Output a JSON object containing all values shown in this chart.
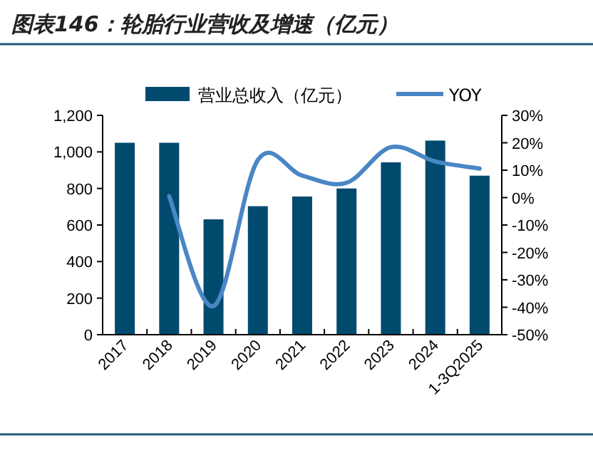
{
  "chart_data": {
    "type": "bar",
    "title": "图表146：轮胎行业营收及增速（亿元）",
    "categories": [
      "2017",
      "2018",
      "2019",
      "2020",
      "2021",
      "2022",
      "2023",
      "2024",
      "1-3Q2025"
    ],
    "series": [
      {
        "name": "营业总收入（亿元）",
        "color": "#004a6e",
        "values": [
          1050,
          1050,
          631,
          703,
          756,
          800,
          943,
          1062,
          870
        ]
      },
      {
        "name": "YOY",
        "type": "line",
        "axis": "y2",
        "color": "#4a86c5",
        "line_style": "solid",
        "marker": "none",
        "values": [
          null,
          0.5,
          -39.6,
          13.7,
          8,
          5.4,
          18.4,
          13.2,
          10.6
        ]
      }
    ],
    "ylim": [
      0,
      1200
    ],
    "yticks": [
      0,
      200,
      400,
      600,
      800,
      {
        "value": 1000,
        "label": "1,000"
      },
      {
        "value": 1200,
        "label": "1,200"
      }
    ],
    "y2lim": [
      -50,
      30
    ],
    "y2ticks": [
      {
        "value": -50,
        "label": "-50%"
      },
      {
        "value": -40,
        "label": "-40%"
      },
      {
        "value": -30,
        "label": "-30%"
      },
      {
        "value": -20,
        "label": "-20%"
      },
      {
        "value": -10,
        "label": "-10%"
      },
      {
        "value": 0,
        "label": "0%"
      },
      {
        "value": 10,
        "label": "10%"
      },
      {
        "value": 20,
        "label": "20%"
      },
      {
        "value": 30,
        "label": "30%"
      }
    ],
    "legend": "top",
    "grid": false
  }
}
